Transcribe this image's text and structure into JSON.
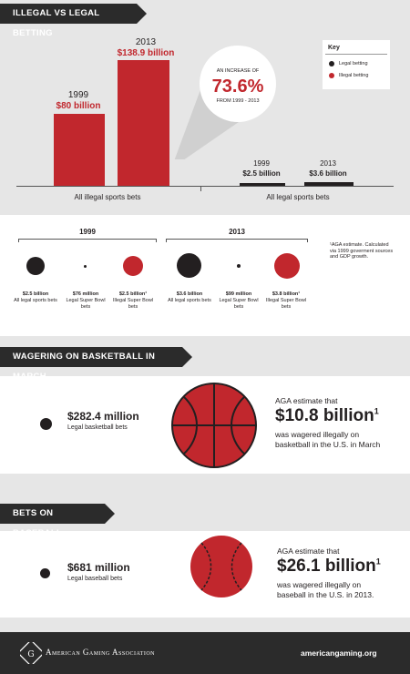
{
  "section1": {
    "title": "ILLEGAL VS LEGAL BETTING",
    "bar_1999": {
      "year": "1999",
      "value": "$80 billion",
      "billions": 80
    },
    "bar_2013": {
      "year": "2013",
      "value": "$138.9 billion",
      "billions": 138.9
    },
    "increase": {
      "line1": "AN INCREASE OF",
      "pct": "73.6%",
      "line2": "FROM 1999 - 2013"
    },
    "legal_1999": {
      "year": "1999",
      "value": "$2.5 billion",
      "billions": 2.5
    },
    "legal_2013": {
      "year": "2013",
      "value": "$3.6 billion",
      "billions": 3.6
    },
    "label_illegal": "All illegal sports bets",
    "label_legal": "All legal sports bets",
    "key": {
      "title": "Key",
      "legal": "Legal betting",
      "illegal": "Illegal betting"
    },
    "colors": {
      "legal": "#231f20",
      "illegal": "#c1272d"
    }
  },
  "section2": {
    "year1": "1999",
    "year2": "2013",
    "footnote": "¹AGA estimate. Calculated via 1999 goverment sources and GDP growth.",
    "items_1999": [
      {
        "value": "$2.5 billion",
        "label": "All legal sports bets",
        "type": "legal"
      },
      {
        "value": "$76 million",
        "label": "Legal Super Bowl bets",
        "type": "legal"
      },
      {
        "value": "$2.5 billion¹",
        "label": "Illegal Super Bowl bets",
        "type": "illegal"
      }
    ],
    "items_2013": [
      {
        "value": "$3.6 billion",
        "label": "All legal sports bets",
        "type": "legal"
      },
      {
        "value": "$99 million",
        "label": "Legal Super Bowl bets",
        "type": "legal"
      },
      {
        "value": "$3.8 billion¹",
        "label": "Illegal Super Bowl bets",
        "type": "illegal"
      }
    ]
  },
  "basketball": {
    "title": "WAGERING ON BASKETBALL IN MARCH",
    "legal_value": "$282.4 million",
    "legal_label": "Legal basketball bets",
    "estimate_intro": "AGA estimate that",
    "estimate_value": "$10.8 billion",
    "estimate_sup": "1",
    "estimate_line1": "was wagered illegally on",
    "estimate_line2": "basketball in the U.S. in March"
  },
  "baseball": {
    "title": "BETS ON BASEBALL",
    "legal_value": "$681 million",
    "legal_label": "Legal baseball bets",
    "estimate_intro": "AGA estimate that",
    "estimate_value": "$26.1 billion",
    "estimate_sup": "1",
    "estimate_line1": "was wagered illegally on",
    "estimate_line2": "baseball in the U.S. in 2013."
  },
  "footer": {
    "org": "American Gaming Association",
    "url": "americangaming.org",
    "logo": "AGA-logo"
  }
}
